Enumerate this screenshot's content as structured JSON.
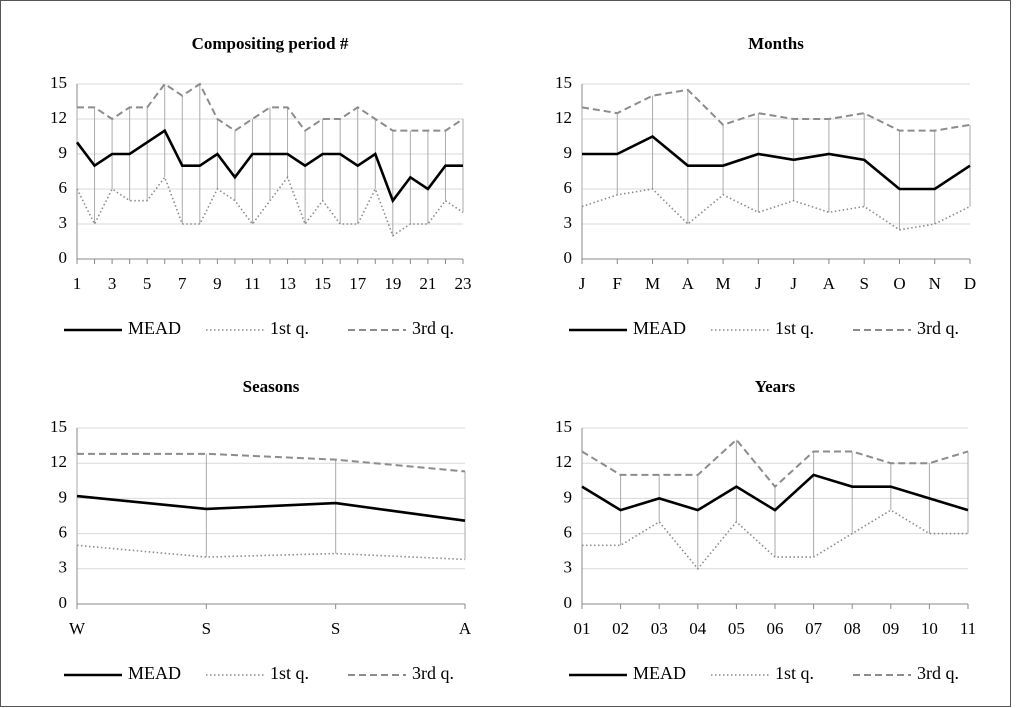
{
  "chart_data": [
    {
      "type": "line",
      "title": "Compositing period #",
      "categories": [
        "1",
        null,
        "3",
        null,
        "5",
        null,
        "7",
        null,
        "9",
        null,
        "11",
        null,
        "13",
        null,
        "15",
        null,
        "17",
        null,
        "19",
        null,
        "21",
        null,
        "23"
      ],
      "series": [
        {
          "name": "MEAD",
          "color": "#000000",
          "style": "solid",
          "values": [
            10,
            8,
            9,
            9,
            10,
            11,
            8,
            8,
            9,
            7,
            9,
            9,
            9,
            8,
            9,
            9,
            8,
            9,
            5,
            7,
            6,
            8,
            8
          ]
        },
        {
          "name": "1st q.",
          "color": "#8c8c8c",
          "style": "dotted",
          "values": [
            6,
            3,
            6,
            5,
            5,
            7,
            3,
            3,
            6,
            5,
            3,
            5,
            7,
            3,
            5,
            3,
            3,
            6,
            2,
            3,
            3,
            5,
            4
          ]
        },
        {
          "name": "3rd q.",
          "color": "#8c8c8c",
          "style": "dashed",
          "values": [
            13,
            13,
            12,
            13,
            13,
            15,
            14,
            15,
            12,
            11,
            12,
            13,
            13,
            11,
            12,
            12,
            13,
            12,
            11,
            11,
            11,
            11,
            12
          ]
        }
      ],
      "ylim": [
        0,
        15
      ],
      "yticks": [
        0,
        3,
        6,
        9,
        12,
        15
      ],
      "grid": true
    },
    {
      "type": "line",
      "title": "Months",
      "categories": [
        "J",
        "F",
        "M",
        "A",
        "M",
        "J",
        "J",
        "A",
        "S",
        "O",
        "N",
        "D"
      ],
      "series": [
        {
          "name": "MEAD",
          "color": "#000000",
          "style": "solid",
          "values": [
            9,
            9,
            10.5,
            8,
            8,
            9,
            8.5,
            9,
            8.5,
            6,
            6,
            8
          ]
        },
        {
          "name": "1st q.",
          "color": "#8c8c8c",
          "style": "dotted",
          "values": [
            4.5,
            5.5,
            6,
            3,
            5.5,
            4,
            5,
            4,
            4.5,
            2.5,
            3,
            4.5
          ]
        },
        {
          "name": "3rd q.",
          "color": "#8c8c8c",
          "style": "dashed",
          "values": [
            13,
            12.5,
            14,
            14.5,
            11.5,
            12.5,
            12,
            12,
            12.5,
            11,
            11,
            11.5
          ]
        }
      ],
      "ylim": [
        0,
        15
      ],
      "yticks": [
        0,
        3,
        6,
        9,
        12,
        15
      ],
      "grid": true
    },
    {
      "type": "line",
      "title": "Seasons",
      "categories": [
        "W",
        "S",
        "S",
        "A"
      ],
      "series": [
        {
          "name": "MEAD",
          "color": "#000000",
          "style": "solid",
          "values": [
            9.2,
            8.1,
            8.6,
            7.1
          ]
        },
        {
          "name": "1st q.",
          "color": "#8c8c8c",
          "style": "dotted",
          "values": [
            5,
            4,
            4.3,
            3.8
          ]
        },
        {
          "name": "3rd q.",
          "color": "#8c8c8c",
          "style": "dashed",
          "values": [
            12.8,
            12.8,
            12.3,
            11.3
          ]
        }
      ],
      "ylim": [
        0,
        15
      ],
      "yticks": [
        0,
        3,
        6,
        9,
        12,
        15
      ],
      "grid": true
    },
    {
      "type": "line",
      "title": "Years",
      "categories": [
        "01",
        "02",
        "03",
        "04",
        "05",
        "06",
        "07",
        "08",
        "09",
        "10",
        "11"
      ],
      "series": [
        {
          "name": "MEAD",
          "color": "#000000",
          "style": "solid",
          "values": [
            10,
            8,
            9,
            8,
            10,
            8,
            11,
            10,
            10,
            9,
            8
          ]
        },
        {
          "name": "1st q.",
          "color": "#8c8c8c",
          "style": "dotted",
          "values": [
            5,
            5,
            7,
            3,
            7,
            4,
            4,
            6,
            8,
            6,
            6
          ]
        },
        {
          "name": "3rd q.",
          "color": "#8c8c8c",
          "style": "dashed",
          "values": [
            13,
            11,
            11,
            11,
            14,
            10,
            13,
            13,
            12,
            12,
            13
          ]
        }
      ],
      "ylim": [
        0,
        15
      ],
      "yticks": [
        0,
        3,
        6,
        9,
        12,
        15
      ],
      "grid": true
    }
  ]
}
